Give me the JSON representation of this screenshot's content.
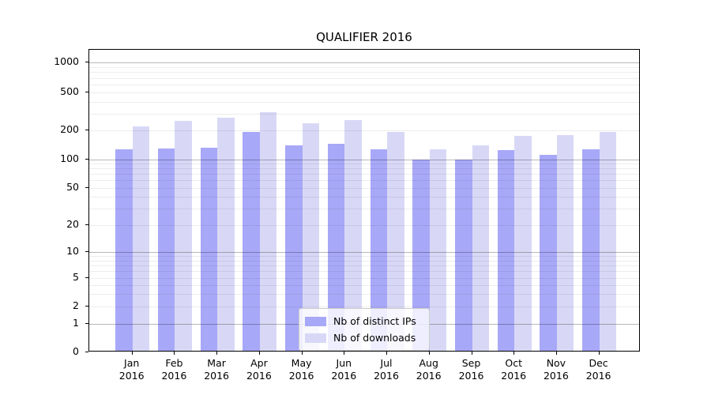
{
  "title": "QUALIFIER 2016",
  "legend": {
    "items": [
      {
        "label": "Nb of distinct IPs",
        "color": "#a8a8f8"
      },
      {
        "label": "Nb of downloads",
        "color": "#d8d8f6"
      }
    ]
  },
  "chart_data": {
    "type": "bar",
    "title": "QUALIFIER 2016",
    "categories": [
      "Jan 2016",
      "Feb 2016",
      "Mar 2016",
      "Apr 2016",
      "May 2016",
      "Jun 2016",
      "Jul 2016",
      "Aug 2016",
      "Sep 2016",
      "Oct 2016",
      "Nov 2016",
      "Dec 2016"
    ],
    "series": [
      {
        "name": "Nb of distinct IPs",
        "color": "#a8a8f8",
        "values": [
          122,
          126,
          127,
          185,
          135,
          141,
          123,
          95,
          96,
          120,
          107,
          122
        ]
      },
      {
        "name": "Nb of downloads",
        "color": "#d8d8f6",
        "values": [
          215,
          243,
          265,
          300,
          230,
          249,
          187,
          123,
          135,
          170,
          172,
          187
        ]
      }
    ],
    "xlabel": "",
    "ylabel": "",
    "y_scale": "symlog",
    "y_ticks": [
      0,
      1,
      2,
      5,
      10,
      20,
      50,
      100,
      200,
      500,
      1000
    ],
    "ylim": [
      0,
      1400
    ],
    "grid": true,
    "legend_position": "lower center"
  }
}
